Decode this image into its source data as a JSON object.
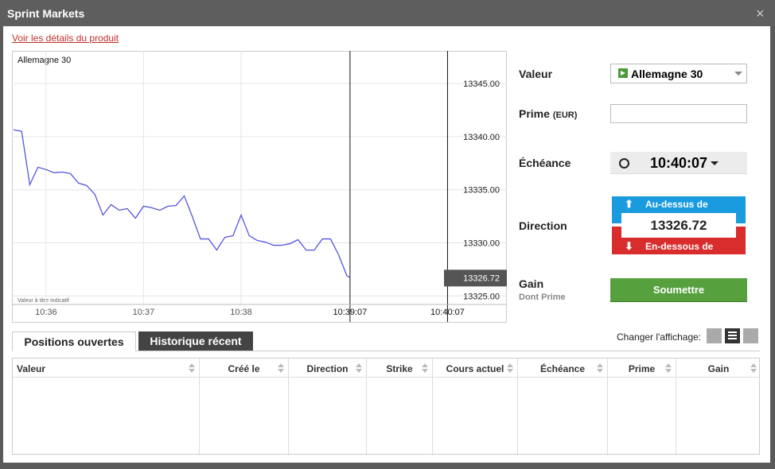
{
  "window": {
    "title": "Sprint Markets",
    "close": "×"
  },
  "product_link": "Voir les détails du produit",
  "chart": {
    "type": "line",
    "title": "Allemagne 30",
    "note": "Valeur à titre indicatif",
    "color": "#5555dd",
    "x": [
      -20,
      -15,
      -10,
      -5,
      0,
      5,
      10,
      15,
      20,
      25,
      30,
      35,
      40,
      45,
      50,
      55,
      60,
      65,
      70,
      75,
      80,
      85,
      90,
      95,
      100,
      105,
      110,
      115,
      120,
      125,
      130,
      135,
      140,
      145,
      150,
      155,
      160,
      165,
      170,
      175,
      180,
      185,
      187
    ],
    "values": [
      13340.65,
      13340.5,
      13335.47,
      13337.12,
      13336.9,
      13336.6,
      13336.67,
      13336.52,
      13335.62,
      13335.4,
      13334.57,
      13332.62,
      13333.6,
      13333.07,
      13333.22,
      13332.32,
      13333.45,
      13333.3,
      13333.07,
      13333.45,
      13333.52,
      13334.42,
      13332.47,
      13330.37,
      13330.37,
      13329.32,
      13330.52,
      13330.67,
      13332.62,
      13330.67,
      13330.22,
      13330.07,
      13329.77,
      13329.77,
      13329.92,
      13330.3,
      13329.32,
      13329.32,
      13330.37,
      13330.37,
      13328.87,
      13326.92,
      13326.72
    ],
    "xlim": [
      -20,
      283
    ],
    "ylim": [
      13324.2,
      13348
    ],
    "xticks": [
      {
        "value": 0,
        "label": "10:36"
      },
      {
        "value": 60,
        "label": "10:37"
      },
      {
        "value": 120,
        "label": "10:38"
      },
      {
        "value": 187,
        "label": "10:39:07"
      },
      {
        "value": 247,
        "label": "10:40:07"
      }
    ],
    "yticks": [
      {
        "value": 13325,
        "label": "13325.00"
      },
      {
        "value": 13330,
        "label": "13330.00"
      },
      {
        "value": 13335,
        "label": "13335.00"
      },
      {
        "value": 13340,
        "label": "13340.00"
      },
      {
        "value": 13345,
        "label": "13345.00"
      }
    ],
    "current": 13326.72
  },
  "form": {
    "valeur": {
      "label": "Valeur",
      "value": "Allemagne 30"
    },
    "prime": {
      "label": "Prime",
      "unit": "(EUR)"
    },
    "echeance": {
      "label": "Échéance",
      "value": "10:40:07"
    },
    "direction": {
      "label": "Direction",
      "up": "Au-dessus de",
      "price": "13326.72",
      "down": "En-dessous de"
    },
    "gain": {
      "label": "Gain",
      "sub": "Dont Prime"
    },
    "submit": "Soumettre"
  },
  "tabs": [
    "Positions ouvertes",
    "Historique récent"
  ],
  "view_label": "Changer l'affichage:",
  "table": {
    "columns": [
      "Valeur",
      "Créé  le",
      "Direction",
      "Strike",
      "Cours actuel",
      "Échéance",
      "Prime",
      "Gain"
    ]
  }
}
